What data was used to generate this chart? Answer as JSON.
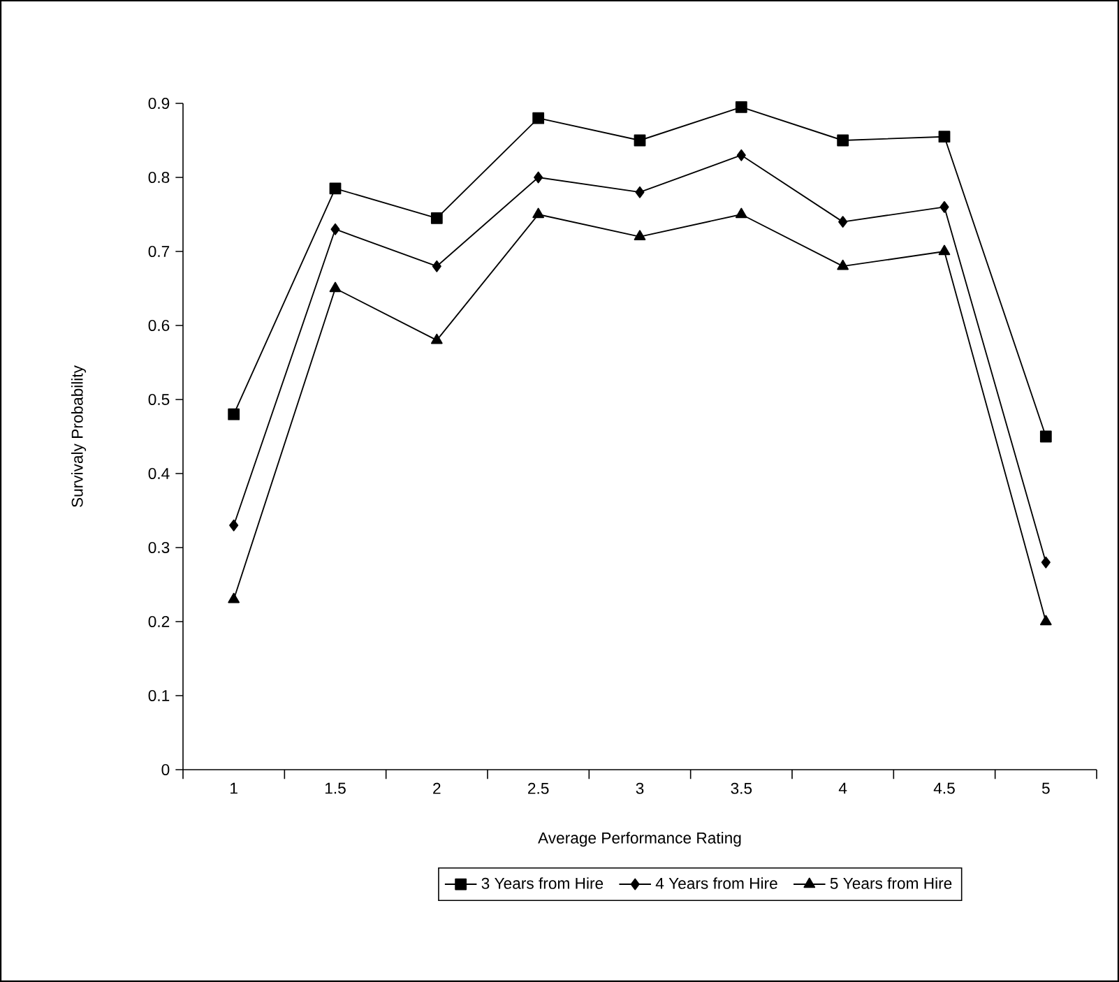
{
  "chart_data": {
    "type": "line",
    "xlabel": "Average Performance Rating",
    "ylabel": "Survivaly Probability",
    "categories": [
      "1",
      "1.5",
      "2",
      "2.5",
      "3",
      "3.5",
      "4",
      "4.5",
      "5"
    ],
    "series": [
      {
        "name": "3 Years from Hire",
        "color": "#000000",
        "marker": "square",
        "values": [
          0.48,
          0.785,
          0.745,
          0.88,
          0.85,
          0.895,
          0.85,
          0.855,
          0.45
        ]
      },
      {
        "name": "4 Years from Hire",
        "color": "#000000",
        "marker": "diamond",
        "values": [
          0.33,
          0.73,
          0.68,
          0.8,
          0.78,
          0.83,
          0.74,
          0.76,
          0.28
        ]
      },
      {
        "name": "5 Years from Hire",
        "color": "#000000",
        "marker": "triangle",
        "values": [
          0.23,
          0.65,
          0.58,
          0.75,
          0.72,
          0.75,
          0.68,
          0.7,
          0.2
        ]
      }
    ],
    "ylim": [
      0,
      0.9
    ],
    "yticks": [
      0,
      0.1,
      0.2,
      0.3,
      0.4,
      0.5,
      0.6,
      0.7,
      0.8,
      0.9
    ],
    "grid": false,
    "legend": "bottom",
    "line_style": "solid"
  }
}
